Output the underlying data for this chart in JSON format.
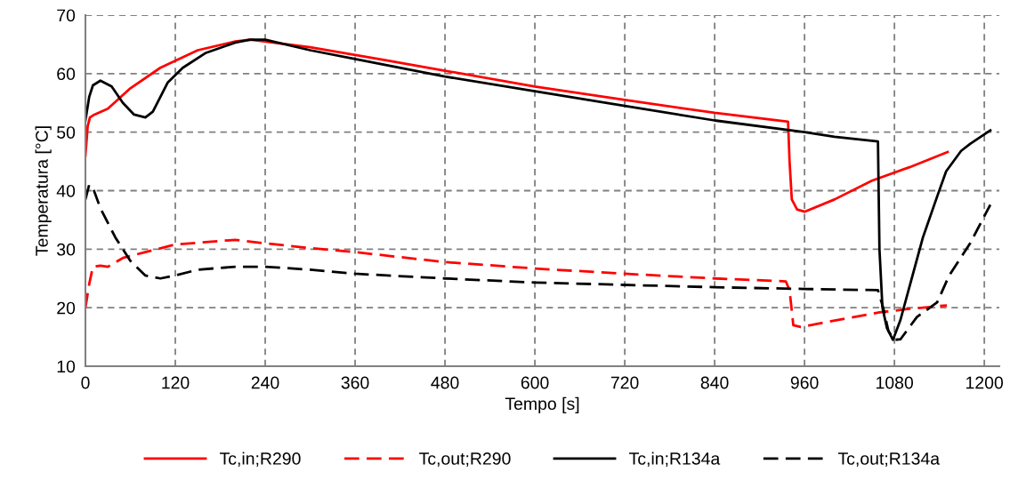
{
  "chart_data": {
    "type": "line",
    "xlabel": "Tempo [s]",
    "ylabel": "Temperatura [°C]",
    "xlim": [
      0,
      1220
    ],
    "xticks": [
      0,
      120,
      240,
      360,
      480,
      600,
      720,
      840,
      960,
      1080,
      1200
    ],
    "ylim": [
      10,
      70
    ],
    "yticks": [
      10,
      20,
      30,
      40,
      50,
      60,
      70
    ],
    "grid": true,
    "legend": "bottom",
    "marker": "none",
    "series": [
      {
        "name": "Tc,in;R290",
        "color": "#ff0000",
        "line_style": "solid",
        "x": [
          0,
          3,
          6,
          12,
          30,
          60,
          100,
          150,
          200,
          220,
          300,
          400,
          480,
          600,
          720,
          840,
          938,
          940,
          943,
          950,
          960,
          1000,
          1050,
          1100,
          1151
        ],
        "values": [
          46,
          51,
          52.5,
          53,
          54,
          57.5,
          61,
          64,
          65.5,
          65.8,
          64.5,
          62.3,
          60.5,
          57.8,
          55.5,
          53.3,
          51.8,
          45,
          38.5,
          36.8,
          36.4,
          38.5,
          41.7,
          44,
          46.6
        ]
      },
      {
        "name": "Tc,out;R290",
        "color": "#ff0000",
        "line_style": "dashed",
        "x": [
          0,
          5,
          10,
          20,
          30,
          50,
          80,
          120,
          160,
          200,
          240,
          300,
          360,
          480,
          600,
          720,
          840,
          935,
          940,
          945,
          955,
          1000,
          1060,
          1100,
          1150
        ],
        "values": [
          20,
          24,
          27,
          27.2,
          27,
          28.5,
          29.5,
          30.8,
          31.2,
          31.6,
          31,
          30.2,
          29.5,
          27.8,
          26.7,
          25.8,
          25,
          24.5,
          23,
          17,
          16.7,
          17.8,
          19.2,
          19.8,
          20.4
        ]
      },
      {
        "name": "Tc,in;R134a",
        "color": "#000000",
        "line_style": "solid",
        "x": [
          0,
          5,
          10,
          20,
          35,
          50,
          65,
          80,
          90,
          110,
          130,
          160,
          200,
          220,
          240,
          300,
          360,
          480,
          600,
          720,
          840,
          960,
          1000,
          1058,
          1060,
          1064,
          1070,
          1078,
          1088,
          1102,
          1118,
          1137,
          1149,
          1169,
          1181,
          1208
        ],
        "values": [
          52,
          56,
          58,
          58.8,
          57.8,
          55,
          53,
          52.5,
          53.5,
          58.5,
          61,
          63.5,
          65.3,
          65.8,
          65.8,
          64,
          62.5,
          59.5,
          57,
          54.5,
          52,
          50,
          49.2,
          48.4,
          30,
          20,
          16.5,
          14.5,
          17.9,
          24.5,
          32,
          39,
          43.3,
          46.8,
          48,
          50.3
        ]
      },
      {
        "name": "Tc,out;R134a",
        "color": "#000000",
        "line_style": "dashed",
        "x": [
          0,
          5,
          10,
          20,
          40,
          60,
          80,
          100,
          120,
          150,
          200,
          240,
          300,
          360,
          480,
          600,
          720,
          840,
          960,
          1058,
          1065,
          1072,
          1080,
          1088,
          1110,
          1137,
          1153,
          1181,
          1208
        ],
        "values": [
          38.5,
          41,
          40.5,
          37,
          32,
          28,
          25.5,
          25,
          25.5,
          26.5,
          27,
          27,
          26.5,
          25.8,
          25,
          24.3,
          23.9,
          23.5,
          23.2,
          23,
          20,
          16,
          14.5,
          14.6,
          18.4,
          20.9,
          25.5,
          31,
          37.6
        ]
      }
    ]
  }
}
